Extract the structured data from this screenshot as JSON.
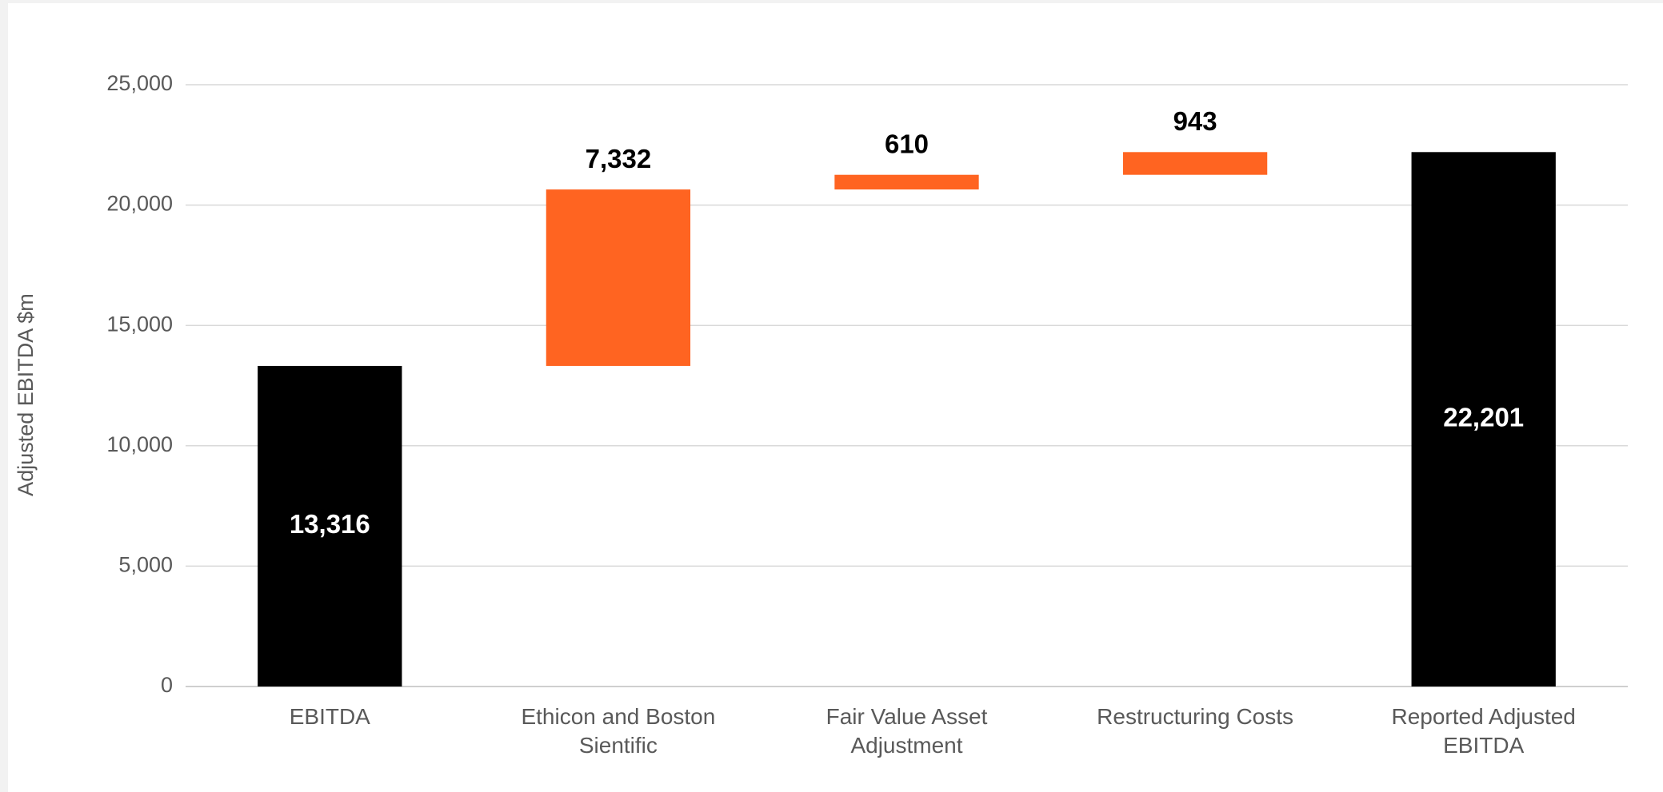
{
  "chart_data": {
    "type": "waterfall",
    "y_label": "Adjusted EBITDA $m",
    "categories": [
      "EBITDA",
      "Ethicon and Boston Sientific",
      "Fair Value Asset Adjustment",
      "Restructuring Costs",
      "Reported Adjusted EBITDA"
    ],
    "values": [
      13316,
      7332,
      610,
      943,
      22201
    ],
    "value_labels": [
      "13,316",
      "7,332",
      "610",
      "943",
      "22,201"
    ],
    "bar_types": [
      "total",
      "increase",
      "increase",
      "increase",
      "total"
    ],
    "colors": {
      "total": "#000000",
      "increase": "#ff6421"
    },
    "ylim": [
      0,
      25000
    ],
    "yticks": [
      0,
      {
        "value": 5000,
        "label": "5,000"
      },
      {
        "value": 10000,
        "label": "10,000"
      },
      {
        "value": 15000,
        "label": "15,000"
      },
      {
        "value": 20000,
        "label": "20,000"
      },
      {
        "value": 25000,
        "label": "25,000"
      }
    ],
    "grid": true
  }
}
